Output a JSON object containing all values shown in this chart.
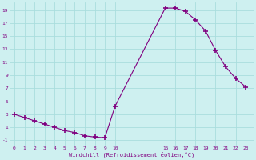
{
  "x": [
    0,
    1,
    2,
    3,
    4,
    5,
    6,
    7,
    8,
    9,
    10,
    15,
    16,
    17,
    18,
    19,
    20,
    21,
    22,
    23
  ],
  "y": [
    3.0,
    2.5,
    2.0,
    1.5,
    1.0,
    0.5,
    0.2,
    -0.3,
    -0.5,
    -0.6,
    4.2,
    19.3,
    19.3,
    18.8,
    17.5,
    15.8,
    12.8,
    10.3,
    8.5,
    7.2
  ],
  "line_color": "#800080",
  "marker": "+",
  "marker_size": 4,
  "bg_color": "#cef0f0",
  "grid_color": "#aadddd",
  "xlabel": "Windchill (Refroidissement éolien,°C)",
  "xlabel_color": "#800080",
  "tick_color": "#800080",
  "yticks": [
    -1,
    1,
    3,
    5,
    7,
    9,
    11,
    13,
    15,
    17,
    19
  ],
  "xticks": [
    0,
    1,
    2,
    3,
    4,
    5,
    6,
    7,
    8,
    9,
    10,
    15,
    16,
    17,
    18,
    19,
    20,
    21,
    22,
    23
  ],
  "xlim": [
    -0.5,
    23.8
  ],
  "ylim": [
    -1.8,
    20.2
  ]
}
